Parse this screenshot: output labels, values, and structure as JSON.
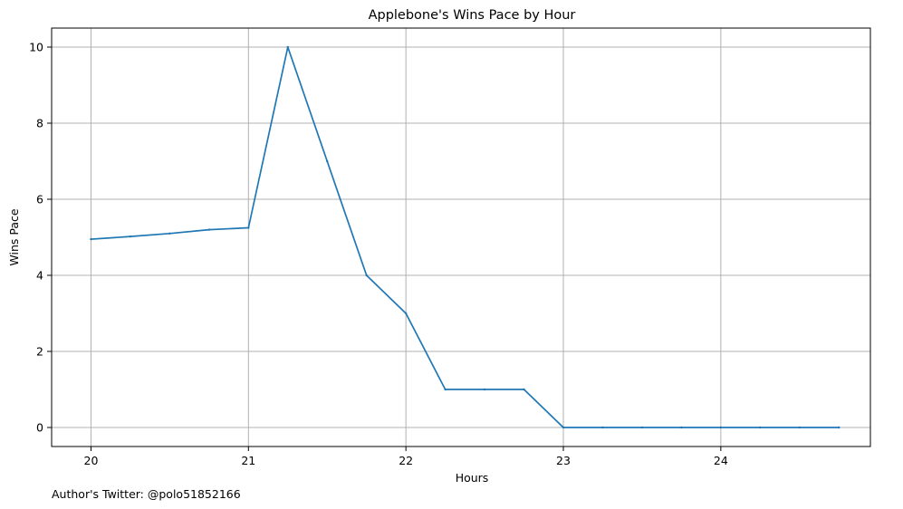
{
  "chart_data": {
    "type": "line",
    "title": "Applebone's Wins Pace by Hour",
    "xlabel": "Hours",
    "ylabel": "Wins Pace",
    "xlim": [
      19.75,
      24.95
    ],
    "ylim": [
      -0.5,
      10.5
    ],
    "xticks": [
      20,
      21,
      22,
      23,
      24
    ],
    "yticks": [
      0,
      2,
      4,
      6,
      8,
      10
    ],
    "grid": true,
    "series": [
      {
        "color": "#1f77b4",
        "x": [
          20,
          20.25,
          20.5,
          20.75,
          21,
          21.25,
          21.5,
          21.75,
          22,
          22.25,
          22.5,
          22.75,
          23,
          23.25,
          23.5,
          23.75,
          24,
          24.25,
          24.5,
          24.75
        ],
        "y": [
          4.95,
          5.02,
          5.1,
          5.2,
          5.25,
          10,
          7,
          4,
          3,
          1,
          1,
          1,
          0,
          0,
          0,
          0,
          0,
          0,
          0,
          0
        ]
      }
    ]
  },
  "footer": {
    "text": "Author's Twitter: @polo51852166"
  }
}
